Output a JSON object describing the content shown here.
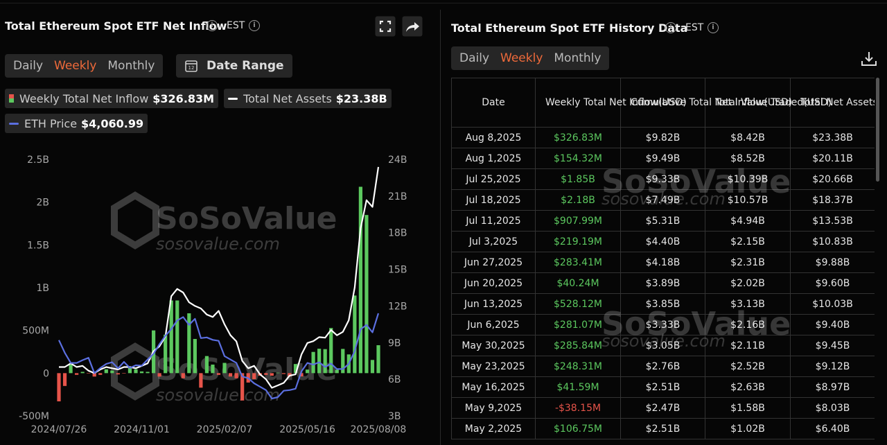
{
  "left_panel": {
    "title": "Total Ethereum Spot ETF Net Inflow",
    "timezone": "EST",
    "tabs": [
      "Daily",
      "Weekly",
      "Monthly"
    ],
    "active_tab": 1,
    "date_range": "Date Range"
  },
  "watermark": {
    "brand": "SoSoValue",
    "url": "sosovalue.com"
  },
  "chart_data": {
    "type": "bar",
    "x": [
      "2024/07/26",
      "2024/08/02",
      "2024/08/09",
      "2024/08/16",
      "2024/08/23",
      "2024/08/30",
      "2024/09/06",
      "2024/09/13",
      "2024/09/20",
      "2024/09/27",
      "2024/10/04",
      "2024/10/11",
      "2024/10/18",
      "2024/10/25",
      "2024/11/01",
      "2024/11/08",
      "2024/11/15",
      "2024/11/22",
      "2024/11/29",
      "2024/12/06",
      "2024/12/13",
      "2024/12/20",
      "2024/12/27",
      "2025/01/03",
      "2025/01/10",
      "2025/01/17",
      "2025/01/24",
      "2025/01/31",
      "2025/02/07",
      "2025/02/14",
      "2025/02/21",
      "2025/02/28",
      "2025/03/07",
      "2025/03/14",
      "2025/03/21",
      "2025/03/28",
      "2025/04/04",
      "2025/04/11",
      "2025/04/18",
      "2025/04/25",
      "2025/05/02",
      "2025/05/09",
      "2025/05/16",
      "2025/05/23",
      "2025/05/30",
      "2025/06/06",
      "2025/06/13",
      "2025/06/20",
      "2025/06/27",
      "2025/07/04",
      "2025/07/11",
      "2025/07/18",
      "2025/07/25",
      "2025/08/01",
      "2025/08/08"
    ],
    "xticks": [
      "2024/07/26",
      "2024/11/01",
      "2025/02/07",
      "2025/05/16",
      "2025/08/08"
    ],
    "ylim": [
      -500,
      2500
    ],
    "yticks": [
      {
        "value": -500,
        "label": "-500M"
      },
      0,
      {
        "value": 500,
        "label": "500M"
      },
      {
        "value": 1000,
        "label": "1B"
      },
      {
        "value": 1500,
        "label": "1.5B"
      },
      {
        "value": 2000,
        "label": "2B"
      },
      {
        "value": 2500,
        "label": "2.5B"
      }
    ],
    "y2lim": [
      3,
      24
    ],
    "y2ticks": [
      {
        "value": 3,
        "label": "3B"
      },
      {
        "value": 6,
        "label": "6B"
      },
      {
        "value": 9,
        "label": "9B"
      },
      {
        "value": 12,
        "label": "12B"
      },
      {
        "value": 15,
        "label": "15B"
      },
      {
        "value": 18,
        "label": "18B"
      },
      {
        "value": 21,
        "label": "21B"
      },
      {
        "value": 24,
        "label": "24B"
      }
    ],
    "grid": false,
    "series": [
      {
        "name": "Weekly Total Net Inflow",
        "type": "bar",
        "color": "#5cc85f",
        "negative_color": "#e6544a",
        "legend_label": "$326.83M",
        "values": [
          -330,
          -150,
          100,
          -20,
          15,
          -5,
          -40,
          -20,
          45,
          30,
          -15,
          -5,
          60,
          45,
          20,
          15,
          500,
          -40,
          450,
          850,
          850,
          -60,
          700,
          400,
          -170,
          200,
          100,
          -20,
          120,
          -40,
          -60,
          -320,
          -110,
          -70,
          -30,
          -20,
          -30,
          5,
          -10,
          -40,
          106.75,
          -38.15,
          41.59,
          248.31,
          285.84,
          281.07,
          528.12,
          40.24,
          283.41,
          219.19,
          907.99,
          2180,
          1850,
          154.32,
          326.83
        ]
      },
      {
        "name": "Total Net Assets",
        "type": "line",
        "axis": "y2",
        "color": "#ffffff",
        "legend_label": "$23.38B",
        "values": [
          7.0,
          7.0,
          7.3,
          7.0,
          7.1,
          6.7,
          6.5,
          6.8,
          7.0,
          6.9,
          6.8,
          7.0,
          7.0,
          6.9,
          7.1,
          7.3,
          8.3,
          8.7,
          9.5,
          12.8,
          13.4,
          13.1,
          12.3,
          12.0,
          11.8,
          11.3,
          11.1,
          11.6,
          10.5,
          9.6,
          9.1,
          7.5,
          6.9,
          7.1,
          6.4,
          6.0,
          5.3,
          5.5,
          5.7,
          6.3,
          6.4,
          8.03,
          8.97,
          9.12,
          9.45,
          9.4,
          10.03,
          9.6,
          9.88,
          10.83,
          13.53,
          18.37,
          20.66,
          20.11,
          23.38
        ]
      },
      {
        "name": "ETH Price",
        "type": "line",
        "axis": "hidden",
        "color": "#5b6fe0",
        "legend_label": "$4,060.99",
        "values": [
          3270,
          2900,
          2600,
          2600,
          2680,
          2750,
          2300,
          2450,
          2570,
          2620,
          2440,
          2630,
          2450,
          2530,
          2520,
          2700,
          2870,
          3150,
          3400,
          3600,
          3850,
          3950,
          3720,
          3900,
          3330,
          3350,
          3280,
          3250,
          2800,
          2700,
          2600,
          2200,
          2150,
          2000,
          1900,
          1800,
          1550,
          1590,
          1780,
          1800,
          1840,
          2350,
          2600,
          2550,
          2620,
          2480,
          2580,
          2420,
          2420,
          2570,
          2950,
          3590,
          3720,
          3500,
          4060.99
        ]
      }
    ]
  },
  "right_panel": {
    "title": "Total Ethereum Spot ETF History Data",
    "timezone": "EST",
    "tabs": [
      "Daily",
      "Weekly",
      "Monthly"
    ],
    "active_tab": 1,
    "table": {
      "headers": [
        "Date",
        "Weekly Total Net Inflow(USD)",
        "Cumulative Total Net Inflow(USD)",
        "Total Value Traded(USD)",
        "Total Net Assets(USD)"
      ],
      "rows": [
        [
          "Aug 8,2025",
          "$326.83M",
          "$9.82B",
          "$8.42B",
          "$23.38B"
        ],
        [
          "Aug 1,2025",
          "$154.32M",
          "$9.49B",
          "$8.52B",
          "$20.11B"
        ],
        [
          "Jul 25,2025",
          "$1.85B",
          "$9.33B",
          "$10.39B",
          "$20.66B"
        ],
        [
          "Jul 18,2025",
          "$2.18B",
          "$7.49B",
          "$10.57B",
          "$18.37B"
        ],
        [
          "Jul 11,2025",
          "$907.99M",
          "$5.31B",
          "$4.94B",
          "$13.53B"
        ],
        [
          "Jul 3,2025",
          "$219.19M",
          "$4.40B",
          "$2.15B",
          "$10.83B"
        ],
        [
          "Jun 27,2025",
          "$283.41M",
          "$4.18B",
          "$2.31B",
          "$9.88B"
        ],
        [
          "Jun 20,2025",
          "$40.24M",
          "$3.89B",
          "$2.02B",
          "$9.60B"
        ],
        [
          "Jun 13,2025",
          "$528.12M",
          "$3.85B",
          "$3.13B",
          "$10.03B"
        ],
        [
          "Jun 6,2025",
          "$281.07M",
          "$3.33B",
          "$2.16B",
          "$9.40B"
        ],
        [
          "May 30,2025",
          "$285.84M",
          "$3.05B",
          "$2.11B",
          "$9.45B"
        ],
        [
          "May 23,2025",
          "$248.31M",
          "$2.76B",
          "$2.52B",
          "$9.12B"
        ],
        [
          "May 16,2025",
          "$41.59M",
          "$2.51B",
          "$2.63B",
          "$8.97B"
        ],
        [
          "May 9,2025",
          "-$38.15M",
          "$2.47B",
          "$1.58B",
          "$8.03B"
        ],
        [
          "May 2,2025",
          "$106.75M",
          "$2.51B",
          "$1.02B",
          "$6.40B"
        ]
      ]
    }
  }
}
